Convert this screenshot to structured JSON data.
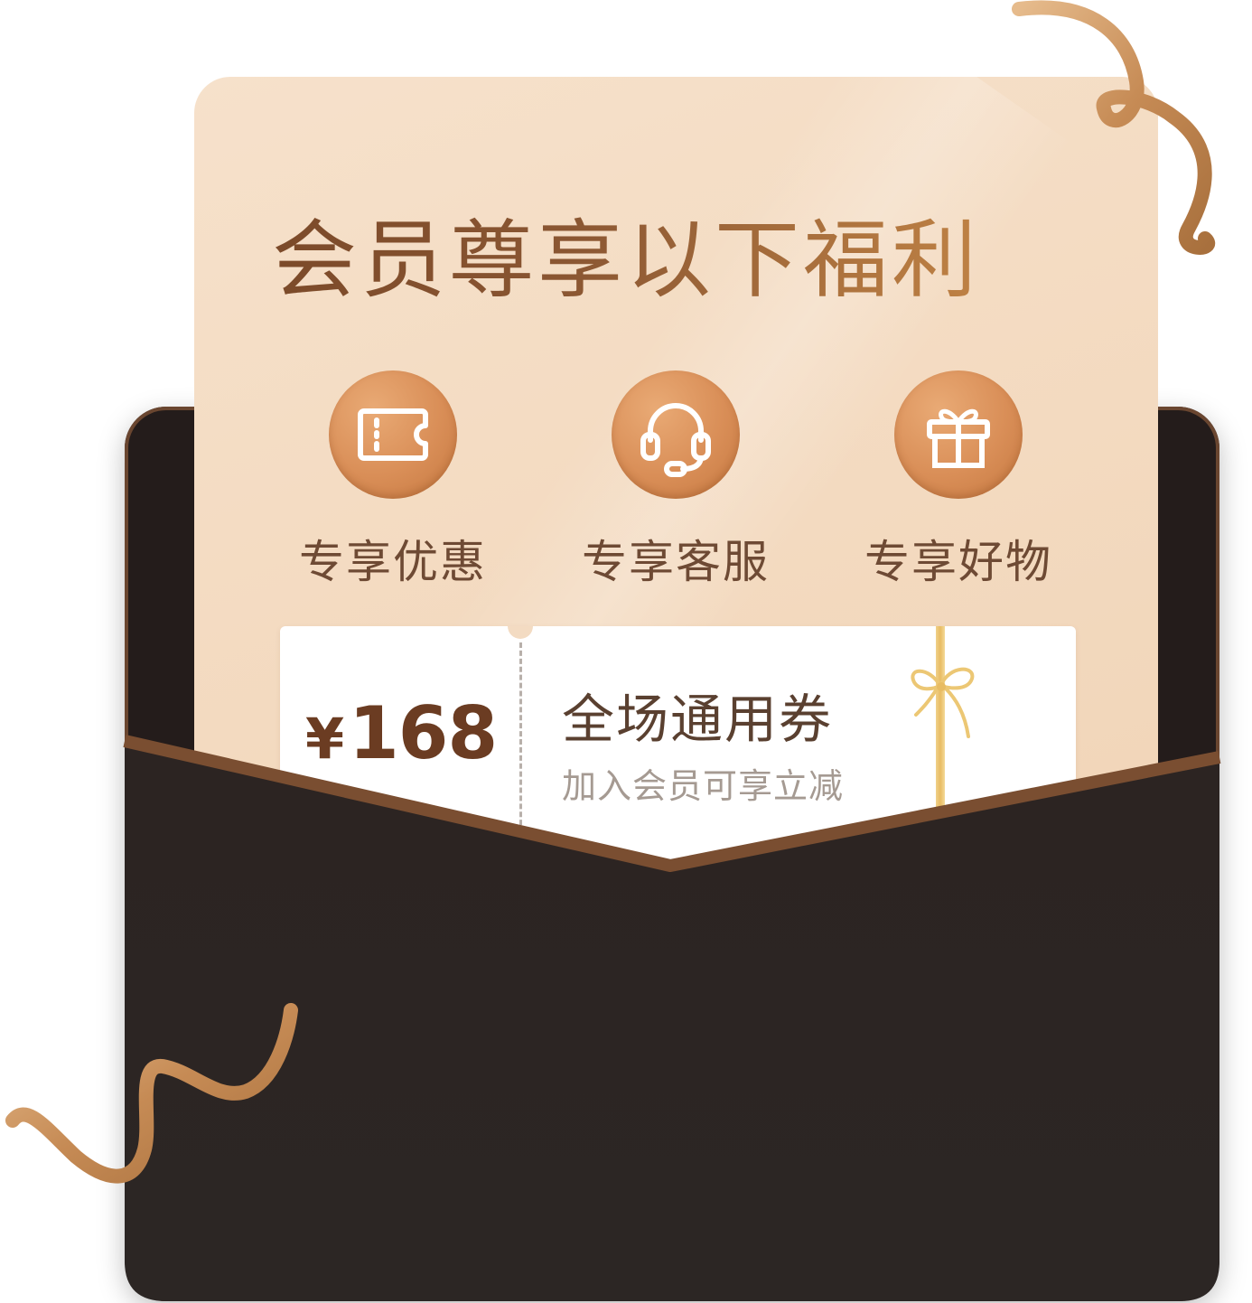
{
  "card": {
    "title": "会员尊享以下福利"
  },
  "benefits": [
    {
      "label": "专享优惠",
      "icon": "ticket-icon"
    },
    {
      "label": "专享客服",
      "icon": "headset-icon"
    },
    {
      "label": "专享好物",
      "icon": "gift-icon"
    }
  ],
  "coupon": {
    "currency": "¥",
    "amount": "168",
    "title": "全场通用券",
    "subtitle": "加入会员可享立减"
  },
  "colors": {
    "card_bg": "#f4dcc3",
    "envelope": "#241c1b",
    "envelope_trim": "#6a4630",
    "accent": "#d98e57",
    "ribbon_gold": "#c9965f"
  }
}
